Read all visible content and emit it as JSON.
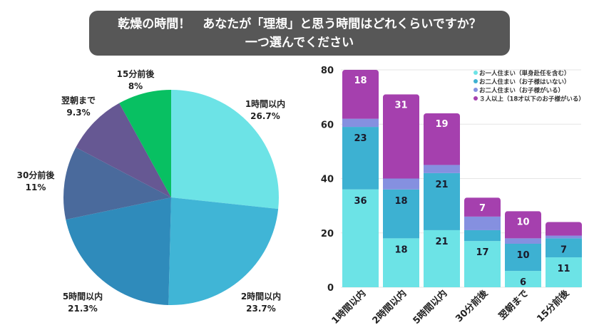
{
  "title": {
    "line1": "乾燥の時間！　あなたが「理想」と思う時間はどれくらいですか？",
    "line2": "一つ選んでください"
  },
  "chart_data": [
    {
      "type": "pie",
      "categories": [
        "1時間以内",
        "2時間以内",
        "5時間以内",
        "30分前後",
        "翌朝まで",
        "15分前後"
      ],
      "values": [
        26.7,
        23.7,
        21.3,
        11,
        9.3,
        8
      ],
      "labels": [
        "26.7%",
        "23.7%",
        "21.3%",
        "11%",
        "9.3%",
        "8%"
      ],
      "colors": [
        "#6ce3e6",
        "#40b5d6",
        "#2f8bbb",
        "#4a6a9c",
        "#665893",
        "#08c062"
      ],
      "start": "top",
      "direction": "clockwise"
    },
    {
      "type": "bar",
      "stacked": true,
      "categories": [
        "1時間以内",
        "2時間以内",
        "5時間以内",
        "30分前後",
        "翌朝まで",
        "15分前後"
      ],
      "series": [
        {
          "name": "お一人住まい（単身赴任を含む）",
          "values": [
            36,
            18,
            21,
            17,
            6,
            11
          ],
          "color": "#6ce3e6",
          "labels": [
            "36",
            "18",
            "21",
            "17",
            "6",
            "11"
          ]
        },
        {
          "name": "お二人住まい（お子様はいない）",
          "values": [
            23,
            18,
            21,
            4,
            10,
            7
          ],
          "color": "#3db1d2",
          "labels": [
            "23",
            "18",
            "21",
            "",
            "10",
            "7"
          ]
        },
        {
          "name": "お二人住まい（お子様がいる）",
          "values": [
            3,
            4,
            3,
            5,
            2,
            1
          ],
          "color": "#8590e0",
          "labels": [
            "",
            "",
            "",
            "",
            "",
            ""
          ]
        },
        {
          "name": "３人以上（18才以下のお子様がいる）",
          "values": [
            18,
            31,
            19,
            7,
            10,
            5
          ],
          "color": "#a540ae",
          "labels": [
            "18",
            "31",
            "19",
            "7",
            "10",
            ""
          ]
        }
      ],
      "yticks": [
        0,
        20,
        40,
        60,
        80
      ],
      "ylim": [
        0,
        80
      ],
      "grid": true,
      "legend": "top-right"
    }
  ]
}
